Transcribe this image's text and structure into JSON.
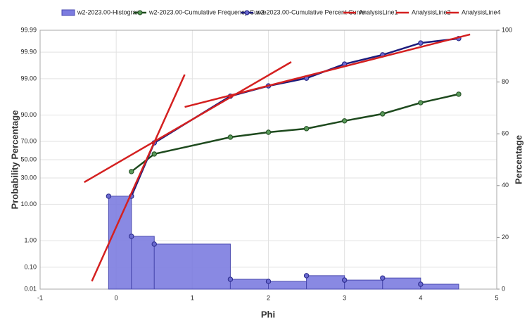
{
  "chart_data": {
    "type": "combo",
    "xlabel": "Phi",
    "ylabel": "Probability Percentage",
    "y2label": "Percentage",
    "xlim": [
      -1,
      5
    ],
    "xticks": [
      -1,
      0,
      1,
      2,
      3,
      4,
      5
    ],
    "ylim": [
      0.01,
      99.99
    ],
    "yscale": "probability",
    "yticks": [
      0.01,
      {
        "value": 0.1,
        "label": "0.10"
      },
      {
        "value": 1,
        "label": "1.00"
      },
      {
        "value": 10,
        "label": "10.00"
      },
      {
        "value": 30,
        "label": "30.00"
      },
      {
        "value": 50,
        "label": "50.00"
      },
      {
        "value": 70,
        "label": "70.00"
      },
      {
        "value": 90,
        "label": "90.00"
      },
      {
        "value": 99,
        "label": "99.00"
      },
      {
        "value": 99.9,
        "label": "99.90"
      },
      99.99
    ],
    "y2lim": [
      0,
      100
    ],
    "y2ticks": [
      0,
      20,
      40,
      60,
      80,
      100
    ],
    "grid": true,
    "legend": "top",
    "series": [
      {
        "name": "w2-2023.00-Histogram",
        "type": "histogram",
        "axis": "y2",
        "color": "#7c7ce0",
        "marker": true,
        "bins": [
          -0.1,
          0.2,
          0.5,
          1.5,
          2,
          2.5,
          3,
          3.5,
          4,
          4.5
        ],
        "values": [
          35.9,
          20.4,
          17.4,
          3.8,
          3.0,
          5.2,
          3.5,
          4.3,
          1.9
        ]
      },
      {
        "name": "w2-2023.00-Cumulative Frequency Curve",
        "type": "line",
        "axis": "y2",
        "color": "#1e4a1e",
        "marker": true,
        "x": [
          0.2,
          0.5,
          1.5,
          2,
          2.5,
          3,
          3.5,
          4,
          4.5
        ],
        "values": [
          45.4,
          52.2,
          58.7,
          60.6,
          62.0,
          65.0,
          67.7,
          72.0,
          75.3
        ]
      },
      {
        "name": "w2-2023.00-Cumulative Percent Curve",
        "type": "line",
        "axis": "y",
        "color": "#1c1c7c",
        "marker": true,
        "x": [
          0.2,
          0.5,
          1.5,
          2,
          2.5,
          3,
          3.5,
          4,
          4.5
        ],
        "values": [
          14.7,
          68.6,
          96.6,
          98.3,
          99.04,
          99.7,
          99.87,
          99.96,
          99.975
        ]
      },
      {
        "name": "AnalysisLine1",
        "type": "line",
        "axis": "y",
        "color": "#d42020",
        "marker": false,
        "x": [
          -0.42,
          2.3
        ],
        "values": [
          25.9,
          99.75
        ]
      },
      {
        "name": "AnalysisLine2",
        "type": "line",
        "axis": "y",
        "color": "#d42020",
        "marker": false,
        "x": [
          0.9,
          4.65
        ],
        "values": [
          93.5,
          99.984
        ]
      },
      {
        "name": "AnalysisLine4",
        "type": "line",
        "axis": "y",
        "color": "#d42020",
        "marker": false,
        "x": [
          -0.32,
          0.9
        ],
        "values": [
          0.024,
          99.28
        ]
      }
    ]
  }
}
